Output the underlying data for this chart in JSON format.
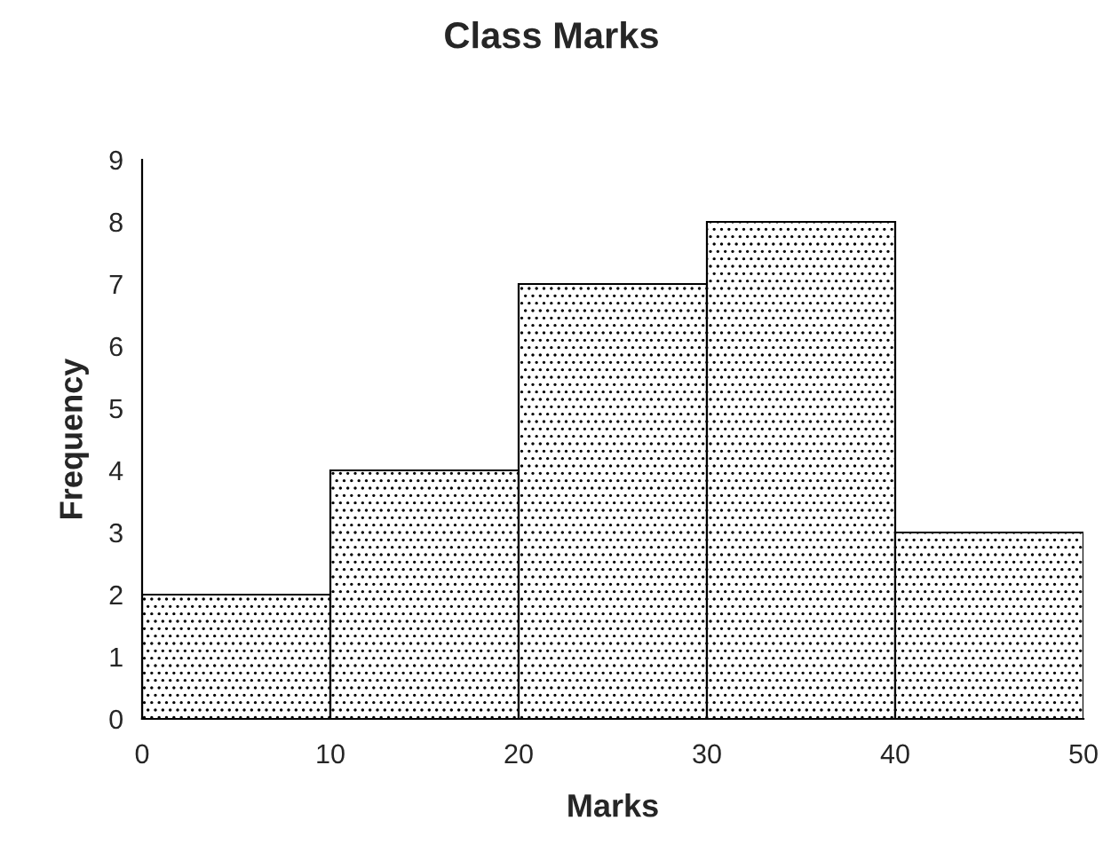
{
  "chart_data": {
    "type": "histogram",
    "title": "Class Marks",
    "xlabel": "Marks",
    "ylabel": "Frequency",
    "bins": [
      0,
      10,
      20,
      30,
      40,
      50
    ],
    "values": [
      2,
      4,
      7,
      8,
      3
    ],
    "color": "#000000",
    "xlim": [
      0,
      50
    ],
    "xticks": [
      0,
      10,
      20,
      30,
      40,
      50
    ],
    "ylim": [
      0,
      9
    ],
    "yticks": [
      0,
      1,
      2,
      3,
      4,
      5,
      6,
      7,
      8,
      9
    ],
    "grid": false
  }
}
